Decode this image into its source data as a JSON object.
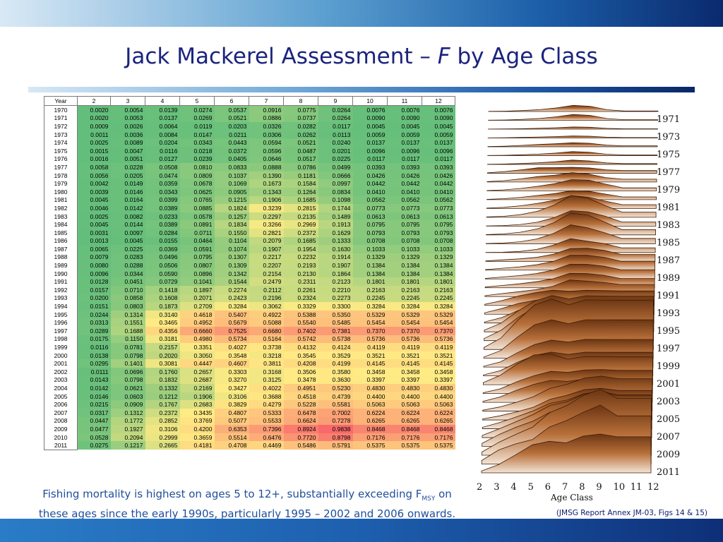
{
  "title": {
    "main": "Jack Mackerel Assessment – ",
    "f": "F",
    "rest": " by Age Class"
  },
  "table": {
    "header": [
      "Year",
      "2",
      "3",
      "4",
      "5",
      "6",
      "7",
      "8",
      "9",
      "10",
      "11",
      "12"
    ],
    "rows": [
      [
        "1970",
        "0.0020",
        "0.0054",
        "0.0139",
        "0.0274",
        "0.0537",
        "0.0916",
        "0.0775",
        "0.0264",
        "0.0076",
        "0.0076",
        "0.0076"
      ],
      [
        "1971",
        "0.0020",
        "0.0053",
        "0.0137",
        "0.0269",
        "0.0521",
        "0.0886",
        "0.0737",
        "0.0264",
        "0.0090",
        "0.0090",
        "0.0090"
      ],
      [
        "1972",
        "0.0009",
        "0.0026",
        "0.0064",
        "0.0119",
        "0.0203",
        "0.0326",
        "0.0282",
        "0.0117",
        "0.0045",
        "0.0045",
        "0.0045"
      ],
      [
        "1973",
        "0.0011",
        "0.0036",
        "0.0084",
        "0.0147",
        "0.0211",
        "0.0306",
        "0.0262",
        "0.0113",
        "0.0059",
        "0.0059",
        "0.0059"
      ],
      [
        "1974",
        "0.0025",
        "0.0089",
        "0.0204",
        "0.0343",
        "0.0443",
        "0.0594",
        "0.0521",
        "0.0240",
        "0.0137",
        "0.0137",
        "0.0137"
      ],
      [
        "1975",
        "0.0015",
        "0.0047",
        "0.0116",
        "0.0218",
        "0.0372",
        "0.0596",
        "0.0487",
        "0.0201",
        "0.0096",
        "0.0096",
        "0.0096"
      ],
      [
        "1976",
        "0.0016",
        "0.0051",
        "0.0127",
        "0.0239",
        "0.0405",
        "0.0646",
        "0.0517",
        "0.0225",
        "0.0117",
        "0.0117",
        "0.0117"
      ],
      [
        "1977",
        "0.0058",
        "0.0228",
        "0.0508",
        "0.0810",
        "0.0833",
        "0.0888",
        "0.0786",
        "0.0499",
        "0.0393",
        "0.0393",
        "0.0393"
      ],
      [
        "1978",
        "0.0056",
        "0.0205",
        "0.0474",
        "0.0809",
        "0.1037",
        "0.1390",
        "0.1181",
        "0.0666",
        "0.0426",
        "0.0426",
        "0.0426"
      ],
      [
        "1979",
        "0.0042",
        "0.0149",
        "0.0359",
        "0.0678",
        "0.1069",
        "0.1673",
        "0.1584",
        "0.0997",
        "0.0442",
        "0.0442",
        "0.0442"
      ],
      [
        "1980",
        "0.0039",
        "0.0146",
        "0.0343",
        "0.0625",
        "0.0905",
        "0.1343",
        "0.1264",
        "0.0834",
        "0.0410",
        "0.0410",
        "0.0410"
      ],
      [
        "1981",
        "0.0045",
        "0.0164",
        "0.0399",
        "0.0765",
        "0.1215",
        "0.1906",
        "0.1685",
        "0.1098",
        "0.0562",
        "0.0562",
        "0.0562"
      ],
      [
        "1982",
        "0.0046",
        "0.0142",
        "0.0389",
        "0.0885",
        "0.1824",
        "0.3239",
        "0.2815",
        "0.1744",
        "0.0773",
        "0.0773",
        "0.0773"
      ],
      [
        "1983",
        "0.0025",
        "0.0082",
        "0.0233",
        "0.0578",
        "0.1257",
        "0.2297",
        "0.2135",
        "0.1489",
        "0.0613",
        "0.0613",
        "0.0613"
      ],
      [
        "1984",
        "0.0045",
        "0.0144",
        "0.0389",
        "0.0891",
        "0.1834",
        "0.3266",
        "0.2969",
        "0.1913",
        "0.0795",
        "0.0795",
        "0.0795"
      ],
      [
        "1985",
        "0.0031",
        "0.0097",
        "0.0284",
        "0.0711",
        "0.1550",
        "0.2821",
        "0.2372",
        "0.1629",
        "0.0793",
        "0.0793",
        "0.0793"
      ],
      [
        "1986",
        "0.0013",
        "0.0045",
        "0.0155",
        "0.0464",
        "0.1104",
        "0.2079",
        "0.1685",
        "0.1333",
        "0.0708",
        "0.0708",
        "0.0708"
      ],
      [
        "1987",
        "0.0065",
        "0.0225",
        "0.0369",
        "0.0591",
        "0.1074",
        "0.1907",
        "0.1954",
        "0.1630",
        "0.1033",
        "0.1033",
        "0.1033"
      ],
      [
        "1988",
        "0.0079",
        "0.0283",
        "0.0496",
        "0.0795",
        "0.1307",
        "0.2217",
        "0.2232",
        "0.1914",
        "0.1329",
        "0.1329",
        "0.1329"
      ],
      [
        "1989",
        "0.0080",
        "0.0288",
        "0.0506",
        "0.0807",
        "0.1309",
        "0.2207",
        "0.2193",
        "0.1907",
        "0.1384",
        "0.1384",
        "0.1384"
      ],
      [
        "1990",
        "0.0096",
        "0.0344",
        "0.0590",
        "0.0896",
        "0.1342",
        "0.2154",
        "0.2130",
        "0.1864",
        "0.1384",
        "0.1384",
        "0.1384"
      ],
      [
        "1991",
        "0.0128",
        "0.0451",
        "0.0729",
        "0.1041",
        "0.1544",
        "0.2479",
        "0.2311",
        "0.2123",
        "0.1801",
        "0.1801",
        "0.1801"
      ],
      [
        "1992",
        "0.0157",
        "0.0710",
        "0.1418",
        "0.1897",
        "0.2274",
        "0.2112",
        "0.2261",
        "0.2210",
        "0.2163",
        "0.2163",
        "0.2163"
      ],
      [
        "1993",
        "0.0200",
        "0.0858",
        "0.1608",
        "0.2071",
        "0.2423",
        "0.2196",
        "0.2324",
        "0.2273",
        "0.2245",
        "0.2245",
        "0.2245"
      ],
      [
        "1994",
        "0.0151",
        "0.0803",
        "0.1873",
        "0.2709",
        "0.3284",
        "0.3062",
        "0.3329",
        "0.3300",
        "0.3284",
        "0.3284",
        "0.3284"
      ],
      [
        "1995",
        "0.0244",
        "0.1314",
        "0.3140",
        "0.4618",
        "0.5407",
        "0.4922",
        "0.5388",
        "0.5350",
        "0.5329",
        "0.5329",
        "0.5329"
      ],
      [
        "1996",
        "0.0313",
        "0.1551",
        "0.3465",
        "0.4952",
        "0.5679",
        "0.5088",
        "0.5540",
        "0.5485",
        "0.5454",
        "0.5454",
        "0.5454"
      ],
      [
        "1997",
        "0.0289",
        "0.1688",
        "0.4356",
        "0.6660",
        "0.7525",
        "0.6680",
        "0.7402",
        "0.7381",
        "0.7370",
        "0.7370",
        "0.7370"
      ],
      [
        "1998",
        "0.0175",
        "0.1150",
        "0.3181",
        "0.4980",
        "0.5734",
        "0.5164",
        "0.5742",
        "0.5738",
        "0.5736",
        "0.5736",
        "0.5736"
      ],
      [
        "1999",
        "0.0116",
        "0.0781",
        "0.2157",
        "0.3351",
        "0.4027",
        "0.3738",
        "0.4132",
        "0.4124",
        "0.4119",
        "0.4119",
        "0.4119"
      ],
      [
        "2000",
        "0.0138",
        "0.0798",
        "0.2020",
        "0.3050",
        "0.3548",
        "0.3218",
        "0.3545",
        "0.3529",
        "0.3521",
        "0.3521",
        "0.3521"
      ],
      [
        "2001",
        "0.0295",
        "0.1401",
        "0.3081",
        "0.4447",
        "0.4607",
        "0.3811",
        "0.4208",
        "0.4199",
        "0.4145",
        "0.4145",
        "0.4145"
      ],
      [
        "2002",
        "0.0111",
        "0.0696",
        "0.1760",
        "0.2657",
        "0.3303",
        "0.3168",
        "0.3506",
        "0.3580",
        "0.3458",
        "0.3458",
        "0.3458"
      ],
      [
        "2003",
        "0.0143",
        "0.0798",
        "0.1832",
        "0.2687",
        "0.3270",
        "0.3125",
        "0.3478",
        "0.3630",
        "0.3397",
        "0.3397",
        "0.3397"
      ],
      [
        "2004",
        "0.0142",
        "0.0621",
        "0.1332",
        "0.2169",
        "0.3427",
        "0.4022",
        "0.4951",
        "0.5230",
        "0.4830",
        "0.4830",
        "0.4830"
      ],
      [
        "2005",
        "0.0146",
        "0.0603",
        "0.1212",
        "0.1906",
        "0.3106",
        "0.3688",
        "0.4518",
        "0.4739",
        "0.4400",
        "0.4400",
        "0.4400"
      ],
      [
        "2006",
        "0.0215",
        "0.0909",
        "0.1767",
        "0.2683",
        "0.3829",
        "0.4279",
        "0.5228",
        "0.5581",
        "0.5063",
        "0.5063",
        "0.5063"
      ],
      [
        "2007",
        "0.0317",
        "0.1312",
        "0.2372",
        "0.3435",
        "0.4807",
        "0.5333",
        "0.6478",
        "0.7002",
        "0.6224",
        "0.6224",
        "0.6224"
      ],
      [
        "2008",
        "0.0447",
        "0.1772",
        "0.2852",
        "0.3769",
        "0.5077",
        "0.5533",
        "0.6624",
        "0.7278",
        "0.6265",
        "0.6265",
        "0.6265"
      ],
      [
        "2009",
        "0.0477",
        "0.1927",
        "0.3106",
        "0.4200",
        "0.6353",
        "0.7396",
        "0.8924",
        "0.9838",
        "0.8468",
        "0.8468",
        "0.8468"
      ],
      [
        "2010",
        "0.0528",
        "0.2094",
        "0.2999",
        "0.3659",
        "0.5514",
        "0.6476",
        "0.7720",
        "0.8798",
        "0.7176",
        "0.7176",
        "0.7176"
      ],
      [
        "2011",
        "0.0275",
        "0.1217",
        "0.2665",
        "0.4181",
        "0.4708",
        "0.4469",
        "0.5486",
        "0.5791",
        "0.5375",
        "0.5375",
        "0.5375"
      ]
    ]
  },
  "caption": {
    "line1_pre": "Fishing mortality is highest on ages 5 to 12+, substantially exceeding F",
    "sub": "MSY",
    "line1_post": " on",
    "line2": "these ages since the early 1990s, particularly 1995 – 2002 and 2006 onwards."
  },
  "source": "(JMSG Report Annex JM-03, Figs 14 & 15)",
  "surface_chart": {
    "year_labels": [
      "1971",
      "1973",
      "1975",
      "1977",
      "1979",
      "1981",
      "1983",
      "1985",
      "1987",
      "1989",
      "1991",
      "1993",
      "1995",
      "1997",
      "1999",
      "2001",
      "2003",
      "2005",
      "2007",
      "2009",
      "2011"
    ],
    "age_labels": [
      "2",
      "3",
      "4",
      "5",
      "6",
      "7",
      "8",
      "9",
      "10",
      "11",
      "12"
    ],
    "axis_title": "Age Class"
  },
  "colors": {
    "low": "#63be7b",
    "mid": "#ffeb84",
    "high": "#f8696b",
    "title": "#1a237e",
    "caption": "#1f4e9b"
  }
}
